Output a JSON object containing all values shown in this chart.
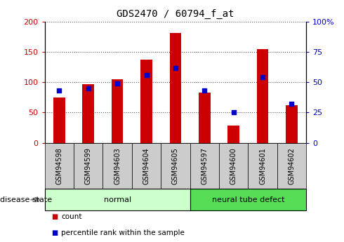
{
  "title": "GDS2470 / 60794_f_at",
  "samples": [
    "GSM94598",
    "GSM94599",
    "GSM94603",
    "GSM94604",
    "GSM94605",
    "GSM94597",
    "GSM94600",
    "GSM94601",
    "GSM94602"
  ],
  "counts": [
    75,
    97,
    105,
    138,
    181,
    83,
    28,
    155,
    62
  ],
  "percentiles": [
    43,
    45,
    49,
    56,
    62,
    43,
    25,
    54,
    32
  ],
  "groups": [
    {
      "label": "normal",
      "start": 0,
      "end": 5,
      "color": "#ccffcc"
    },
    {
      "label": "neural tube defect",
      "start": 5,
      "end": 9,
      "color": "#55dd55"
    }
  ],
  "left_ylim": [
    0,
    200
  ],
  "right_ylim": [
    0,
    100
  ],
  "left_yticks": [
    0,
    50,
    100,
    150,
    200
  ],
  "right_yticks": [
    0,
    25,
    50,
    75,
    100
  ],
  "left_yticklabels": [
    "0",
    "50",
    "100",
    "150",
    "200"
  ],
  "right_yticklabels": [
    "0",
    "25",
    "50",
    "75",
    "100%"
  ],
  "left_color": "#cc0000",
  "right_color": "#0000cc",
  "bar_color": "#cc0000",
  "dot_color": "#0000cc",
  "grid_color": "#555555",
  "disease_state_label": "disease state",
  "legend_items": [
    {
      "label": "count",
      "color": "#cc0000"
    },
    {
      "label": "percentile rank within the sample",
      "color": "#0000cc"
    }
  ],
  "bar_width": 0.4,
  "xtick_box_color": "#cccccc"
}
